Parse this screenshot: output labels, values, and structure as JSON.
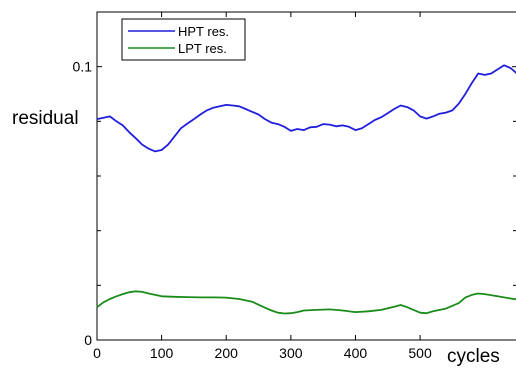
{
  "chart_data": {
    "type": "line",
    "title": "",
    "xlabel": "cycles",
    "ylabel": "residual",
    "xlim": [
      0,
      650
    ],
    "ylim": [
      0,
      0.12
    ],
    "x_ticks": [
      0,
      100,
      200,
      300,
      400,
      500
    ],
    "x_tick_labels": [
      "0",
      "100",
      "200",
      "300",
      "400",
      "500"
    ],
    "y_ticks": [
      0,
      0.1
    ],
    "y_tick_labels": [
      "0",
      "0.1"
    ],
    "legend_position": "top-left",
    "grid": false,
    "series": [
      {
        "name": "HPT res.",
        "color": "#1f1fdc",
        "x": [
          0,
          10,
          20,
          30,
          40,
          50,
          60,
          70,
          80,
          90,
          100,
          110,
          120,
          130,
          140,
          150,
          160,
          170,
          180,
          190,
          200,
          210,
          220,
          230,
          240,
          250,
          260,
          270,
          280,
          290,
          300,
          310,
          320,
          330,
          340,
          350,
          360,
          370,
          380,
          390,
          400,
          410,
          420,
          430,
          440,
          450,
          460,
          470,
          480,
          490,
          500,
          510,
          520,
          530,
          540,
          550,
          560,
          570,
          580,
          590,
          600,
          610,
          620,
          630,
          640,
          650
        ],
        "values": [
          0.0808,
          0.0813,
          0.0818,
          0.08,
          0.0785,
          0.076,
          0.0738,
          0.0715,
          0.07,
          0.069,
          0.0695,
          0.0715,
          0.0745,
          0.0775,
          0.0792,
          0.0808,
          0.0825,
          0.084,
          0.085,
          0.0855,
          0.086,
          0.0858,
          0.0855,
          0.0845,
          0.0835,
          0.0825,
          0.0808,
          0.0795,
          0.079,
          0.078,
          0.0765,
          0.0772,
          0.0768,
          0.0778,
          0.078,
          0.079,
          0.0788,
          0.0782,
          0.0785,
          0.078,
          0.0768,
          0.0775,
          0.079,
          0.0805,
          0.0815,
          0.083,
          0.0845,
          0.0858,
          0.0852,
          0.084,
          0.0818,
          0.081,
          0.0818,
          0.0828,
          0.0832,
          0.084,
          0.0865,
          0.09,
          0.094,
          0.0975,
          0.097,
          0.0975,
          0.099,
          0.1005,
          0.0995,
          0.0975
        ]
      },
      {
        "name": "LPT res.",
        "color": "#1a8c1a",
        "x": [
          0,
          10,
          20,
          30,
          40,
          50,
          60,
          70,
          80,
          90,
          100,
          120,
          140,
          160,
          180,
          200,
          220,
          240,
          260,
          270,
          280,
          290,
          300,
          310,
          320,
          340,
          360,
          380,
          400,
          420,
          440,
          460,
          470,
          480,
          490,
          500,
          510,
          520,
          540,
          560,
          570,
          580,
          590,
          600,
          620,
          640,
          650
        ],
        "values": [
          0.012,
          0.0138,
          0.015,
          0.016,
          0.0168,
          0.0175,
          0.0178,
          0.0176,
          0.017,
          0.0165,
          0.016,
          0.0158,
          0.0157,
          0.0156,
          0.0156,
          0.0155,
          0.015,
          0.014,
          0.0118,
          0.0108,
          0.01,
          0.0097,
          0.0098,
          0.0102,
          0.0108,
          0.011,
          0.0112,
          0.0108,
          0.0102,
          0.0105,
          0.011,
          0.0122,
          0.0128,
          0.012,
          0.011,
          0.01,
          0.0098,
          0.0105,
          0.0115,
          0.0135,
          0.0155,
          0.0165,
          0.017,
          0.0168,
          0.016,
          0.0152,
          0.0148
        ]
      }
    ]
  }
}
